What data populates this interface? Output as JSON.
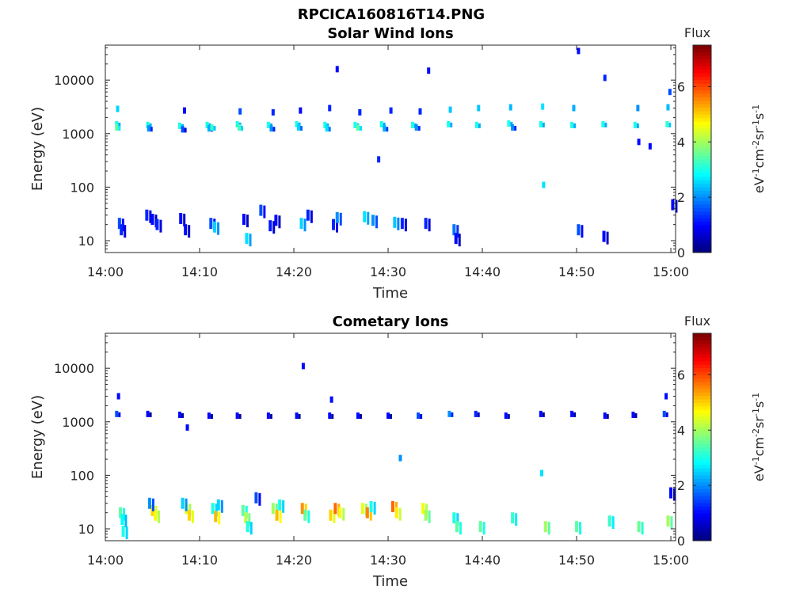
{
  "figure_title": "RPCICA160816T14.PNG",
  "chart_data": [
    {
      "type": "heatmap",
      "title": "Solar Wind Ions",
      "xlabel": "Time",
      "ylabel": "Energy (eV)",
      "x_ticks": [
        "14:00",
        "14:10",
        "14:20",
        "14:30",
        "14:40",
        "14:50",
        "15:00"
      ],
      "x_range_minutes": [
        0,
        60.5
      ],
      "y_scale": "log",
      "y_ticks": [
        "10",
        "100",
        "1000",
        "10000"
      ],
      "ylim": [
        6,
        45000
      ],
      "colorbar": {
        "label_top": "Flux",
        "unit_base": "eV",
        "unit_sup1": "-1",
        "unit_mid": "cm",
        "unit_sup2": "-2",
        "unit_mid2": "sr",
        "unit_sup3": "-1",
        "unit_mid3": "s",
        "unit_sup4": "-1",
        "ticks": [
          "0",
          "2",
          "4",
          "6"
        ],
        "range": [
          0,
          7.5
        ],
        "colormap": "jet"
      },
      "cells": [
        [
          1.2,
          1500,
          3.0
        ],
        [
          1.2,
          1300,
          3.5
        ],
        [
          1.3,
          2900,
          2.5
        ],
        [
          1.5,
          21,
          1.5
        ],
        [
          1.7,
          16,
          1.2
        ],
        [
          4.5,
          1450,
          3.0
        ],
        [
          4.6,
          1250,
          2.0
        ],
        [
          4.4,
          30,
          1.2
        ],
        [
          5.0,
          25,
          1.0
        ],
        [
          5.5,
          20,
          1.2
        ],
        [
          7.9,
          1400,
          3.0
        ],
        [
          8.2,
          1200,
          1.5
        ],
        [
          8.4,
          2700,
          1.0
        ],
        [
          8.0,
          26,
          1.0
        ],
        [
          8.5,
          16,
          1.0
        ],
        [
          10.8,
          1450,
          3.0
        ],
        [
          11.0,
          1250,
          2.2
        ],
        [
          11.3,
          1300,
          3.2
        ],
        [
          11.2,
          21,
          1.5
        ],
        [
          11.6,
          18,
          2.5
        ],
        [
          14.0,
          1500,
          3.0
        ],
        [
          14.2,
          1300,
          3.3
        ],
        [
          14.3,
          2600,
          1.5
        ],
        [
          14.7,
          25,
          1.0
        ],
        [
          15.0,
          11,
          2.6
        ],
        [
          17.3,
          1450,
          3.0
        ],
        [
          17.6,
          1250,
          2.0
        ],
        [
          17.8,
          2500,
          1.2
        ],
        [
          17.5,
          19,
          1.1
        ],
        [
          18.1,
          24,
          1.0
        ],
        [
          20.3,
          1500,
          3.0
        ],
        [
          20.5,
          1300,
          2.5
        ],
        [
          20.7,
          2700,
          1.0
        ],
        [
          20.8,
          21,
          2.5
        ],
        [
          21.5,
          30,
          1.2
        ],
        [
          23.3,
          1450,
          3.0
        ],
        [
          23.5,
          1250,
          2.6
        ],
        [
          23.8,
          3000,
          1.2
        ],
        [
          24.2,
          20,
          1.2
        ],
        [
          24.6,
          27,
          2.0
        ],
        [
          26.5,
          1450,
          3.0
        ],
        [
          26.8,
          1300,
          3.4
        ],
        [
          27.0,
          2500,
          1.2
        ],
        [
          27.5,
          28,
          2.6
        ],
        [
          28.4,
          24,
          2.0
        ],
        [
          29.3,
          1500,
          3.0
        ],
        [
          29.6,
          1250,
          2.2
        ],
        [
          30.3,
          2700,
          1.2
        ],
        [
          30.7,
          22,
          2.4
        ],
        [
          31.5,
          21,
          1.2
        ],
        [
          32.6,
          1450,
          3.0
        ],
        [
          33.0,
          1300,
          2.0
        ],
        [
          33.4,
          2600,
          1.2
        ],
        [
          34.0,
          21,
          1.2
        ],
        [
          34.3,
          15000,
          1.0
        ],
        [
          36.4,
          1500,
          3.0
        ],
        [
          36.6,
          2800,
          2.4
        ],
        [
          37.0,
          16,
          1.8
        ],
        [
          37.2,
          11,
          1.0
        ],
        [
          29.0,
          330,
          1.2
        ],
        [
          39.4,
          1450,
          3.0
        ],
        [
          39.6,
          3000,
          2.4
        ],
        [
          42.8,
          1550,
          3.0
        ],
        [
          43.0,
          3100,
          2.3
        ],
        [
          43.2,
          1300,
          2.0
        ],
        [
          46.2,
          1500,
          3.0
        ],
        [
          46.4,
          3200,
          2.6
        ],
        [
          46.5,
          110,
          2.6
        ],
        [
          49.5,
          1450,
          3.0
        ],
        [
          49.7,
          3000,
          2.2
        ],
        [
          50.2,
          16,
          1.5
        ],
        [
          52.8,
          1500,
          3.0
        ],
        [
          53.0,
          11000,
          1.2
        ],
        [
          52.9,
          12,
          1.0
        ],
        [
          56.2,
          1450,
          3.0
        ],
        [
          56.5,
          3000,
          2.0
        ],
        [
          56.6,
          700,
          1.0
        ],
        [
          57.8,
          580,
          1.0
        ],
        [
          59.6,
          1500,
          3.2
        ],
        [
          59.7,
          3100,
          2.3
        ],
        [
          59.9,
          6000,
          1.5
        ],
        [
          60.2,
          47,
          1.0
        ],
        [
          50.2,
          35000,
          1.0
        ],
        [
          24.6,
          16000,
          1.0
        ],
        [
          16.5,
          37,
          1.5
        ]
      ]
    },
    {
      "type": "heatmap",
      "title": "Cometary Ions",
      "xlabel": "Time",
      "ylabel": "Energy (eV)",
      "x_ticks": [
        "14:00",
        "14:10",
        "14:20",
        "14:30",
        "14:40",
        "14:50",
        "15:00"
      ],
      "x_range_minutes": [
        0,
        60.5
      ],
      "y_scale": "log",
      "y_ticks": [
        "10",
        "100",
        "1000",
        "10000"
      ],
      "ylim": [
        6,
        45000
      ],
      "colorbar": {
        "label_top": "Flux",
        "unit_base": "eV",
        "unit_sup1": "-1",
        "unit_mid": "cm",
        "unit_sup2": "-2",
        "unit_mid2": "sr",
        "unit_sup3": "-1",
        "unit_mid3": "s",
        "unit_sup4": "-1",
        "ticks": [
          "0",
          "2",
          "4",
          "6"
        ],
        "range": [
          0,
          7.5
        ],
        "colormap": "jet"
      },
      "cells": [
        [
          1.2,
          1400,
          1.5
        ],
        [
          1.4,
          3000,
          1.0
        ],
        [
          1.6,
          20,
          3.5
        ],
        [
          1.8,
          15,
          2.8
        ],
        [
          1.9,
          9,
          3.0
        ],
        [
          4.5,
          1400,
          1.0
        ],
        [
          5.0,
          22,
          5.0
        ],
        [
          5.3,
          18,
          4.6
        ],
        [
          4.7,
          30,
          2.0
        ],
        [
          7.9,
          1350,
          1.0
        ],
        [
          8.6,
          24,
          4.5
        ],
        [
          8.9,
          18,
          5.0
        ],
        [
          8.2,
          30,
          2.5
        ],
        [
          8.7,
          780,
          1.0
        ],
        [
          11.0,
          1300,
          1.0
        ],
        [
          11.4,
          24,
          3.0
        ],
        [
          11.7,
          17,
          5.2
        ],
        [
          12.0,
          28,
          2.5
        ],
        [
          14.0,
          1300,
          1.0
        ],
        [
          14.6,
          22,
          3.5
        ],
        [
          14.9,
          16,
          4.2
        ],
        [
          15.1,
          11,
          3.0
        ],
        [
          17.3,
          1300,
          1.0
        ],
        [
          17.8,
          24,
          4.0
        ],
        [
          18.2,
          18,
          5.2
        ],
        [
          18.5,
          28,
          3.0
        ],
        [
          20.3,
          1300,
          1.0
        ],
        [
          20.9,
          24,
          5.5
        ],
        [
          21.2,
          18,
          3.5
        ],
        [
          21.0,
          11000,
          1.0
        ],
        [
          23.8,
          1300,
          1.0
        ],
        [
          23.9,
          18,
          5.0
        ],
        [
          24.4,
          24,
          5.8
        ],
        [
          24.9,
          20,
          4.6
        ],
        [
          26.8,
          1300,
          1.0
        ],
        [
          27.3,
          24,
          4.5
        ],
        [
          27.8,
          20,
          5.6
        ],
        [
          28.2,
          26,
          3.0
        ],
        [
          30.0,
          1300,
          1.0
        ],
        [
          30.5,
          26,
          5.8
        ],
        [
          30.9,
          20,
          4.8
        ],
        [
          31.3,
          210,
          2.0
        ],
        [
          33.2,
          1300,
          1.5
        ],
        [
          33.7,
          24,
          4.6
        ],
        [
          34.0,
          18,
          4.0
        ],
        [
          36.5,
          1400,
          2.0
        ],
        [
          37.0,
          16,
          3.0
        ],
        [
          37.3,
          11,
          3.5
        ],
        [
          39.3,
          1400,
          1.2
        ],
        [
          39.8,
          11,
          3.5
        ],
        [
          42.5,
          1300,
          1.0
        ],
        [
          43.2,
          16,
          3.2
        ],
        [
          46.2,
          1400,
          1.0
        ],
        [
          46.7,
          11,
          4.0
        ],
        [
          49.5,
          1400,
          1.0
        ],
        [
          50.0,
          11,
          3.5
        ],
        [
          53.0,
          1300,
          1.0
        ],
        [
          53.5,
          14,
          3.2
        ],
        [
          56.0,
          1350,
          1.0
        ],
        [
          56.6,
          11,
          3.6
        ],
        [
          59.3,
          1400,
          1.5
        ],
        [
          59.7,
          14,
          4.0
        ],
        [
          59.5,
          3000,
          1.0
        ],
        [
          60.0,
          47,
          1.0
        ],
        [
          46.3,
          110,
          2.6
        ],
        [
          16.0,
          38,
          1.5
        ],
        [
          24.0,
          2600,
          1.0
        ]
      ]
    }
  ]
}
